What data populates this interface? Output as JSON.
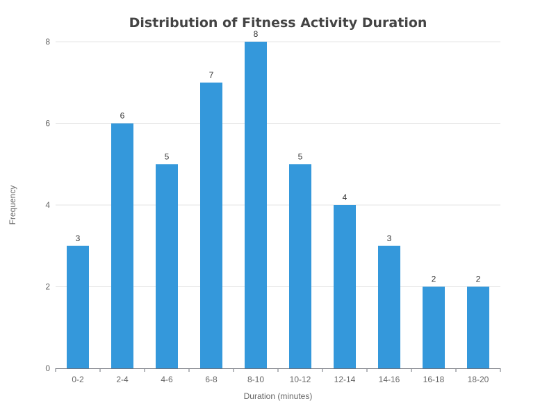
{
  "chart_data": {
    "type": "bar",
    "title": "Distribution of Fitness Activity Duration",
    "xlabel": "Duration (minutes)",
    "ylabel": "Frequency",
    "categories": [
      "0-2",
      "2-4",
      "4-6",
      "6-8",
      "8-10",
      "10-12",
      "12-14",
      "14-16",
      "16-18",
      "18-20"
    ],
    "values": [
      3,
      6,
      5,
      7,
      8,
      5,
      4,
      3,
      2,
      2
    ],
    "ylim": [
      0,
      8
    ],
    "yticks": [
      0,
      2,
      4,
      6,
      8
    ],
    "grid": true,
    "show_data_labels": true,
    "bar_color": "#3498db"
  }
}
